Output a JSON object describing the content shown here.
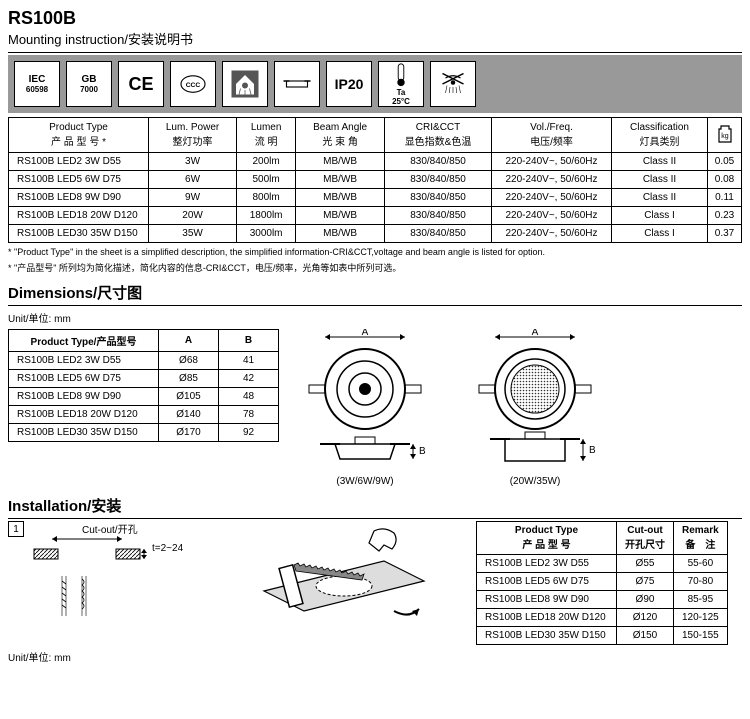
{
  "header": {
    "title": "RS100B",
    "subtitle": "Mounting instruction/安装说明书"
  },
  "icons": {
    "iec": "IEC",
    "iec_num": "60598",
    "gb": "GB",
    "gb_num": "7000",
    "ce": "CE",
    "ip": "IP20",
    "ta": "Ta",
    "ta_val": "25°C"
  },
  "main_table": {
    "headers": {
      "pt": "Product Type",
      "pt_cn": "产 品 型 号 *",
      "lum": "Lum. Power",
      "lum_cn": "整灯功率",
      "lumen": "Lumen",
      "lumen_cn": "流 明",
      "beam": "Beam Angle",
      "beam_cn": "光 束 角",
      "cri": "CRI&CCT",
      "cri_cn": "显色指数&色温",
      "vol": "Vol./Freq.",
      "vol_cn": "电压/频率",
      "cls": "Classification",
      "cls_cn": "灯具类别",
      "kg": "kg"
    },
    "rows": [
      {
        "pt": "RS100B LED2 3W D55",
        "lum": "3W",
        "lumen": "200lm",
        "beam": "MB/WB",
        "cri": "830/840/850",
        "vol": "220-240V~, 50/60Hz",
        "cls": "Class II",
        "kg": "0.05"
      },
      {
        "pt": "RS100B LED5 6W D75",
        "lum": "6W",
        "lumen": "500lm",
        "beam": "MB/WB",
        "cri": "830/840/850",
        "vol": "220-240V~, 50/60Hz",
        "cls": "Class II",
        "kg": "0.08"
      },
      {
        "pt": "RS100B LED8 9W D90",
        "lum": "9W",
        "lumen": "800lm",
        "beam": "MB/WB",
        "cri": "830/840/850",
        "vol": "220-240V~, 50/60Hz",
        "cls": "Class II",
        "kg": "0.11"
      },
      {
        "pt": "RS100B LED18 20W D120",
        "lum": "20W",
        "lumen": "1800lm",
        "beam": "MB/WB",
        "cri": "830/840/850",
        "vol": "220-240V~, 50/60Hz",
        "cls": "Class I",
        "kg": "0.23"
      },
      {
        "pt": "RS100B LED30 35W D150",
        "lum": "35W",
        "lumen": "3000lm",
        "beam": "MB/WB",
        "cri": "830/840/850",
        "vol": "220-240V~, 50/60Hz",
        "cls": "Class I",
        "kg": "0.37"
      }
    ]
  },
  "footnote": {
    "en": "* \"Product Type\" in the sheet is a simplified description, the simplified information-CRI&CCT,voltage and beam angle is listed for option.",
    "cn": "* \"产品型号\" 所列均为简化描述，简化内容的信息-CRI&CCT，电压/频率，光角等如表中所列可选。"
  },
  "dim": {
    "title": "Dimensions/尺寸图",
    "unit": "Unit/单位: mm",
    "headers": {
      "pt": "Product Type/产品型号",
      "a": "A",
      "b": "B"
    },
    "rows": [
      {
        "pt": "RS100B LED2 3W D55",
        "a": "Ø68",
        "b": "41"
      },
      {
        "pt": "RS100B LED5 6W D75",
        "a": "Ø85",
        "b": "42"
      },
      {
        "pt": "RS100B LED8 9W D90",
        "a": "Ø105",
        "b": "48"
      },
      {
        "pt": "RS100B LED18 20W D120",
        "a": "Ø140",
        "b": "78"
      },
      {
        "pt": "RS100B LED30 35W D150",
        "a": "Ø170",
        "b": "92"
      }
    ],
    "cap1": "(3W/6W/9W)",
    "cap2": "(20W/35W)"
  },
  "install": {
    "title": "Installation/安装",
    "step": "1",
    "cutout": "Cut-out/开孔",
    "t": "t=2~24",
    "unit": "Unit/单位: mm",
    "headers": {
      "pt": "Product Type",
      "pt_cn": "产 品 型 号",
      "co": "Cut-out",
      "co_cn": "开孔尺寸",
      "rm": "Remark",
      "rm_cn": "备　注"
    },
    "rows": [
      {
        "pt": "RS100B LED2 3W D55",
        "co": "Ø55",
        "rm": "55-60"
      },
      {
        "pt": "RS100B LED5 6W D75",
        "co": "Ø75",
        "rm": "70-80"
      },
      {
        "pt": "RS100B LED8 9W D90",
        "co": "Ø90",
        "rm": "85-95"
      },
      {
        "pt": "RS100B LED18 20W D120",
        "co": "Ø120",
        "rm": "120-125"
      },
      {
        "pt": "RS100B LED30 35W D150",
        "co": "Ø150",
        "rm": "150-155"
      }
    ]
  }
}
